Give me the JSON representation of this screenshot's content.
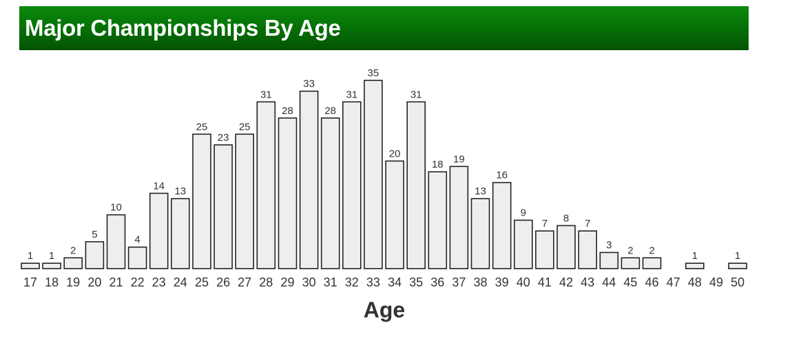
{
  "header": {
    "title": "Major Championships By Age",
    "background_color": "#067306",
    "text_color": "#ffffff"
  },
  "chart_data": {
    "type": "bar",
    "title": "Major Championships By Age",
    "xlabel": "Age",
    "ylabel": "",
    "categories": [
      "17",
      "18",
      "19",
      "20",
      "21",
      "22",
      "23",
      "24",
      "25",
      "26",
      "27",
      "28",
      "29",
      "30",
      "31",
      "32",
      "33",
      "34",
      "35",
      "36",
      "37",
      "38",
      "39",
      "40",
      "41",
      "42",
      "43",
      "44",
      "45",
      "46",
      "47",
      "48",
      "49",
      "50"
    ],
    "values": [
      1,
      1,
      2,
      5,
      10,
      4,
      14,
      13,
      25,
      23,
      25,
      31,
      28,
      33,
      28,
      31,
      35,
      20,
      31,
      18,
      19,
      13,
      16,
      9,
      7,
      8,
      7,
      3,
      2,
      2,
      0,
      1,
      0,
      1
    ],
    "ylim": [
      0,
      35
    ],
    "grid": false,
    "legend": "none",
    "bar_fill": "#eeeeee",
    "bar_stroke": "#222222"
  }
}
